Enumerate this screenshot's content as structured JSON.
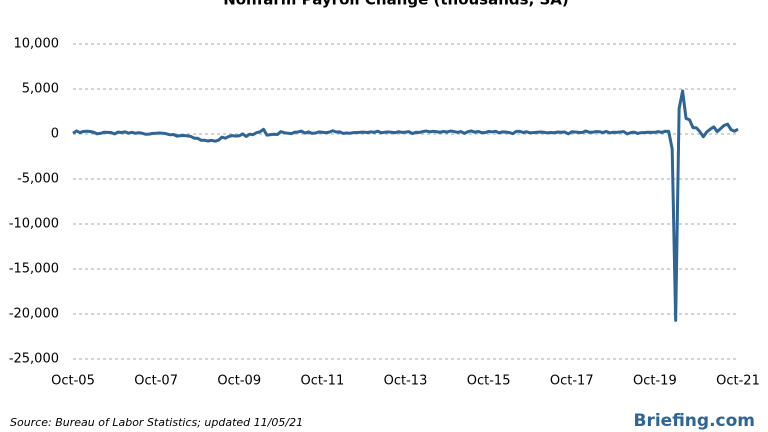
{
  "chart_data": {
    "type": "line",
    "title": "Nonfarm Payroll Change (thousands, SA)",
    "categories": [
      "Oct-05",
      null,
      null,
      null,
      null,
      null,
      null,
      null,
      null,
      null,
      null,
      null,
      null,
      null,
      null,
      null,
      null,
      null,
      null,
      null,
      null,
      null,
      null,
      null,
      "Oct-07",
      null,
      null,
      null,
      null,
      null,
      null,
      null,
      null,
      null,
      null,
      null,
      null,
      null,
      null,
      null,
      null,
      null,
      null,
      null,
      null,
      null,
      null,
      null,
      "Oct-09",
      null,
      null,
      null,
      null,
      null,
      null,
      null,
      null,
      null,
      null,
      null,
      null,
      null,
      null,
      null,
      null,
      null,
      null,
      null,
      null,
      null,
      null,
      null,
      "Oct-11",
      null,
      null,
      null,
      null,
      null,
      null,
      null,
      null,
      null,
      null,
      null,
      null,
      null,
      null,
      null,
      null,
      null,
      null,
      null,
      null,
      null,
      null,
      null,
      "Oct-13",
      null,
      null,
      null,
      null,
      null,
      null,
      null,
      null,
      null,
      null,
      null,
      null,
      null,
      null,
      null,
      null,
      null,
      null,
      null,
      null,
      null,
      null,
      null,
      "Oct-15",
      null,
      null,
      null,
      null,
      null,
      null,
      null,
      null,
      null,
      null,
      null,
      null,
      null,
      null,
      null,
      null,
      null,
      null,
      null,
      null,
      null,
      null,
      null,
      "Oct-17",
      null,
      null,
      null,
      null,
      null,
      null,
      null,
      null,
      null,
      null,
      null,
      null,
      null,
      null,
      null,
      null,
      null,
      null,
      null,
      null,
      null,
      null,
      null,
      "Oct-19",
      null,
      null,
      null,
      null,
      null,
      null,
      null,
      null,
      null,
      null,
      null,
      null,
      null,
      null,
      null,
      null,
      null,
      null,
      null,
      null,
      null,
      null,
      null,
      "Oct-21"
    ],
    "series": [
      {
        "name": "Nonfarm Payroll Change",
        "color": "#2e6496",
        "values": [
          80,
          340,
          160,
          280,
          310,
          280,
          180,
          20,
          80,
          200,
          180,
          160,
          10,
          210,
          170,
          240,
          90,
          190,
          80,
          140,
          80,
          -30,
          -20,
          70,
          80,
          110,
          90,
          20,
          -90,
          -60,
          -240,
          -180,
          -170,
          -210,
          -270,
          -460,
          -480,
          -700,
          -700,
          -780,
          -700,
          -800,
          -690,
          -350,
          -470,
          -270,
          -180,
          -230,
          -200,
          10,
          -270,
          -20,
          -70,
          150,
          240,
          520,
          -130,
          -70,
          -30,
          -60,
          260,
          140,
          90,
          40,
          190,
          230,
          320,
          100,
          230,
          70,
          110,
          230,
          200,
          140,
          210,
          360,
          220,
          240,
          75,
          110,
          80,
          150,
          170,
          190,
          210,
          170,
          240,
          190,
          310,
          140,
          200,
          230,
          190,
          150,
          260,
          180,
          210,
          260,
          50,
          190,
          170,
          270,
          330,
          240,
          300,
          250,
          200,
          280,
          220,
          330,
          270,
          190,
          270,
          70,
          250,
          340,
          200,
          280,
          150,
          150,
          290,
          230,
          300,
          130,
          240,
          220,
          160,
          40,
          290,
          290,
          170,
          250,
          120,
          160,
          200,
          220,
          190,
          120,
          170,
          140,
          220,
          190,
          220,
          20,
          250,
          220,
          180,
          160,
          330,
          200,
          190,
          270,
          250,
          160,
          280,
          120,
          200,
          180,
          230,
          270,
          10,
          150,
          210,
          60,
          150,
          170,
          200,
          180,
          190,
          260,
          180,
          310,
          290,
          -1680,
          -20700,
          2830,
          4780,
          1730,
          1580,
          710,
          680,
          260,
          -310,
          230,
          540,
          790,
          270,
          610,
          960,
          1090,
          480,
          310,
          530
        ]
      }
    ],
    "ylim": [
      -25000,
      10000
    ],
    "yticks": [
      {
        "value": -25000,
        "label": "-25,000"
      },
      {
        "value": -20000,
        "label": "-20,000"
      },
      {
        "value": -15000,
        "label": "-15,000"
      },
      {
        "value": -10000,
        "label": "-10,000"
      },
      {
        "value": -5000,
        "label": "-5,000"
      },
      0,
      {
        "value": 5000,
        "label": "5,000"
      },
      {
        "value": 10000,
        "label": "10,000"
      }
    ],
    "grid": true,
    "negative_tick_color": "#e00000",
    "source": "Source: Bureau of Labor Statistics; updated 11/05/21",
    "brand": "Briefing.com"
  }
}
